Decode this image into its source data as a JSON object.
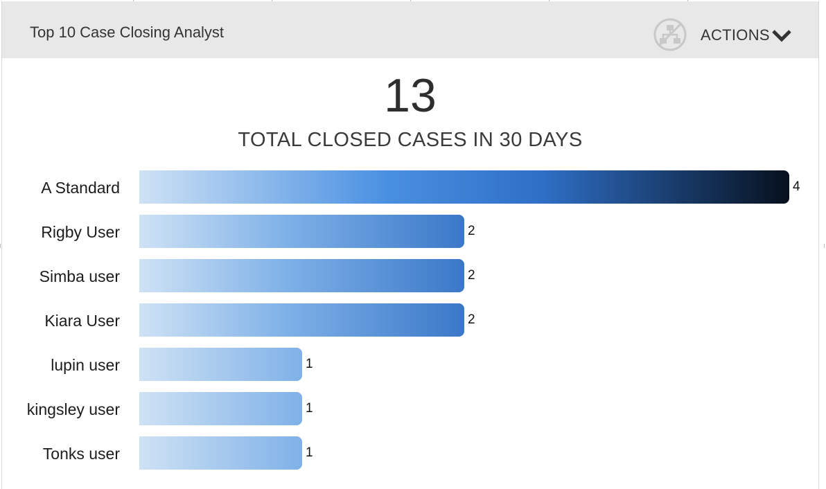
{
  "widget": {
    "title": "Top 10 Case Closing Analyst",
    "actions_label": "ACTIONS",
    "share_icon": "sitemap-disabled-icon",
    "chevron_icon": "chevron-down-icon"
  },
  "summary": {
    "total": "13",
    "label": "TOTAL CLOSED CASES IN 30 DAYS"
  },
  "colors": {
    "header_bg": "#e8e8e8",
    "bar_light": "#cfe2f5",
    "bar_mid": "#4a90e2",
    "bar_dark": "#07101e"
  },
  "chart_data": {
    "type": "bar",
    "orientation": "horizontal",
    "categories": [
      "A Standard",
      "Rigby User",
      "Simba user",
      "Kiara User",
      "lupin user",
      "kingsley user",
      "Tonks user"
    ],
    "values": [
      4,
      2,
      2,
      2,
      1,
      1,
      1
    ],
    "xlim": [
      0,
      4
    ],
    "grid": false
  }
}
